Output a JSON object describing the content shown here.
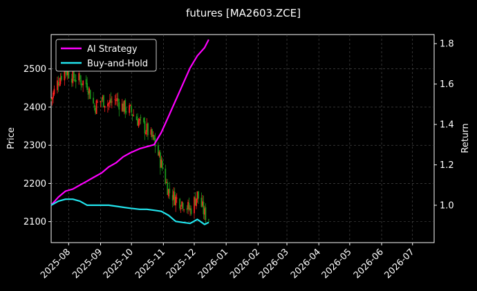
{
  "chart_data": {
    "type": "line",
    "title": "futures [MA2603.ZCE]",
    "xlabel": "",
    "ylabel_left": "Price",
    "ylabel_right": "Return",
    "x_range": [
      "2025-07-15",
      "2026-07-22"
    ],
    "ylim_left": [
      2045,
      2590
    ],
    "ylim_right": [
      0.815,
      1.845
    ],
    "x_ticks": [
      "2025-08",
      "2025-09",
      "2025-10",
      "2025-11",
      "2025-12",
      "2026-01",
      "2026-02",
      "2026-03",
      "2026-04",
      "2026-05",
      "2026-06",
      "2026-07"
    ],
    "y_ticks_left": [
      2100,
      2200,
      2300,
      2400,
      2500
    ],
    "y_ticks_right": [
      1.0,
      1.2,
      1.4,
      1.6,
      1.8
    ],
    "grid": true,
    "legend_position": "top-left",
    "colors": {
      "background": "#000000",
      "ai_strategy": "#ff00ff",
      "buy_and_hold": "#22e5ee",
      "candle_up": "#ff2020",
      "candle_down": "#1a9a1a",
      "grid": "#555555"
    },
    "price_series": {
      "dates": [
        "2025-07-15",
        "2025-07-22",
        "2025-07-28",
        "2025-08-05",
        "2025-08-12",
        "2025-08-19",
        "2025-08-26",
        "2025-09-02",
        "2025-09-09",
        "2025-09-16",
        "2025-09-23",
        "2025-09-30",
        "2025-10-09",
        "2025-10-16",
        "2025-10-23",
        "2025-10-30",
        "2025-11-06",
        "2025-11-13",
        "2025-11-20",
        "2025-11-27",
        "2025-12-04",
        "2025-12-11",
        "2025-12-15"
      ],
      "values": [
        2420,
        2470,
        2500,
        2480,
        2470,
        2460,
        2400,
        2420,
        2410,
        2420,
        2400,
        2390,
        2360,
        2340,
        2310,
        2250,
        2180,
        2160,
        2150,
        2130,
        2170,
        2120,
        2110
      ]
    },
    "series": [
      {
        "name": "AI Strategy",
        "x": [
          "2025-07-15",
          "2025-07-22",
          "2025-07-29",
          "2025-08-05",
          "2025-08-12",
          "2025-08-19",
          "2025-08-26",
          "2025-09-02",
          "2025-09-09",
          "2025-09-16",
          "2025-09-23",
          "2025-09-30",
          "2025-10-09",
          "2025-10-16",
          "2025-10-23",
          "2025-10-30",
          "2025-11-06",
          "2025-11-13",
          "2025-11-20",
          "2025-11-27",
          "2025-12-04",
          "2025-12-11",
          "2025-12-15"
        ],
        "y": [
          1.0,
          1.04,
          1.07,
          1.08,
          1.1,
          1.12,
          1.14,
          1.16,
          1.19,
          1.21,
          1.24,
          1.26,
          1.28,
          1.29,
          1.3,
          1.36,
          1.44,
          1.52,
          1.6,
          1.68,
          1.74,
          1.78,
          1.82
        ]
      },
      {
        "name": "Buy-and-Hold",
        "x": [
          "2025-07-15",
          "2025-07-22",
          "2025-07-29",
          "2025-08-05",
          "2025-08-12",
          "2025-08-19",
          "2025-08-26",
          "2025-09-02",
          "2025-09-09",
          "2025-09-16",
          "2025-09-23",
          "2025-09-30",
          "2025-10-09",
          "2025-10-16",
          "2025-10-23",
          "2025-10-30",
          "2025-11-06",
          "2025-11-13",
          "2025-11-20",
          "2025-11-27",
          "2025-12-04",
          "2025-12-11",
          "2025-12-15"
        ],
        "y": [
          1.0,
          1.02,
          1.03,
          1.03,
          1.02,
          1.0,
          1.0,
          1.0,
          1.0,
          0.995,
          0.99,
          0.985,
          0.98,
          0.98,
          0.975,
          0.97,
          0.95,
          0.92,
          0.915,
          0.91,
          0.93,
          0.905,
          0.915
        ]
      }
    ]
  }
}
